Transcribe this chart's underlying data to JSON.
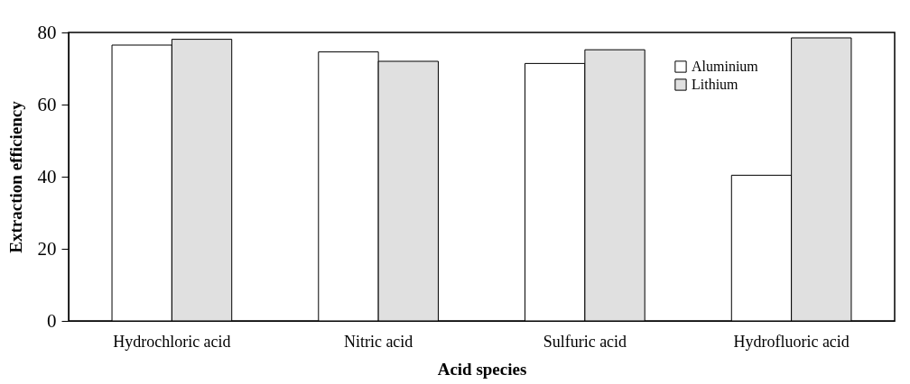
{
  "chart_data": {
    "type": "bar",
    "xlabel": "Acid species",
    "ylabel": "Extraction  efficiency",
    "categories": [
      "Hydrochloric acid",
      "Nitric acid",
      "Sulfuric acid",
      "Hydrofluoric acid"
    ],
    "series": [
      {
        "name": "Aluminium",
        "color": "#ffffff",
        "values": [
          76.5,
          74.6,
          71.4,
          40.4
        ]
      },
      {
        "name": "Lithium",
        "color": "#e0e0e0",
        "values": [
          78.1,
          72.0,
          75.2,
          78.5
        ]
      }
    ],
    "ylim": [
      0,
      80
    ],
    "yticks": [
      0,
      20,
      40,
      60,
      80
    ],
    "grid": false,
    "legend": "top right"
  }
}
